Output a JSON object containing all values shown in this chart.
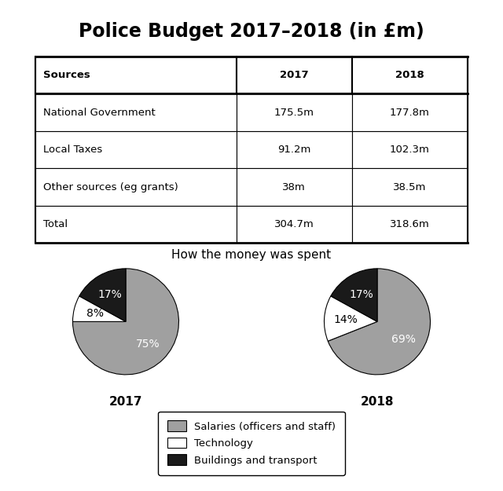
{
  "title": "Police Budget 2017–2018 (in £m)",
  "table": {
    "headers": [
      "Sources",
      "2017",
      "2018"
    ],
    "rows": [
      [
        "National Government",
        "175.5m",
        "177.8m"
      ],
      [
        "Local Taxes",
        "91.2m",
        "102.3m"
      ],
      [
        "Other sources (eg grants)",
        "38m",
        "38.5m"
      ],
      [
        "Total",
        "304.7m",
        "318.6m"
      ]
    ]
  },
  "pie_title": "How the money was spent",
  "pie_2017": {
    "values": [
      75,
      8,
      17
    ],
    "labels": [
      "75%",
      "8%",
      "17%"
    ],
    "label_colors": [
      "white",
      "black",
      "white"
    ],
    "colors": [
      "#a0a0a0",
      "#ffffff",
      "#1a1a1a"
    ],
    "year": "2017"
  },
  "pie_2018": {
    "values": [
      69,
      14,
      17
    ],
    "labels": [
      "69%",
      "14%",
      "17%"
    ],
    "label_colors": [
      "white",
      "black",
      "white"
    ],
    "colors": [
      "#a0a0a0",
      "#ffffff",
      "#1a1a1a"
    ],
    "year": "2018"
  },
  "legend_labels": [
    "Salaries (officers and staff)",
    "Technology",
    "Buildings and transport"
  ],
  "legend_colors": [
    "#a0a0a0",
    "#ffffff",
    "#1a1a1a"
  ],
  "background_color": "#ffffff",
  "title_fontsize": 17,
  "table_fontsize": 9.5,
  "pie_label_fontsize": 10,
  "pie_year_fontsize": 11,
  "pie_title_fontsize": 11,
  "legend_fontsize": 9.5
}
